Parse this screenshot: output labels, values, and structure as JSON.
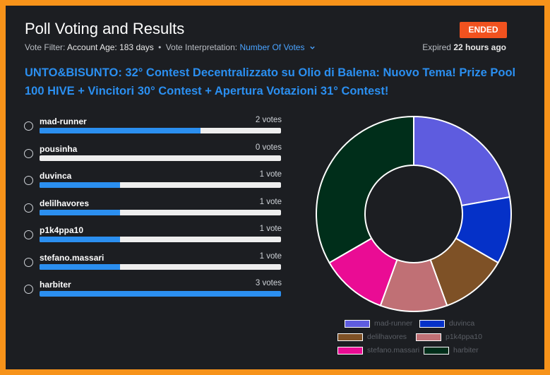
{
  "header": {
    "title": "Poll Voting and Results",
    "status_badge": "ENDED",
    "vote_filter_label": "Vote Filter:",
    "vote_filter_value": "Account Age: 183 days",
    "separator": "•",
    "interpretation_label": "Vote Interpretation:",
    "interpretation_value": "Number Of Votes",
    "expired_prefix": "Expired",
    "expired_value": "22 hours ago"
  },
  "question": "UNTO&BISUNTO: 32° Contest Decentralizzato su Olio di Balena: Nuovo Tema! Prize Pool 100 HIVE + Vincitori 30° Contest + Apertura Votazioni 31° Contest!",
  "options": [
    {
      "label": "mad-runner",
      "votes_text": "2 votes",
      "share": 0.667
    },
    {
      "label": "pousinha",
      "votes_text": "0 votes",
      "share": 0
    },
    {
      "label": "duvinca",
      "votes_text": "1 vote",
      "share": 0.333
    },
    {
      "label": "delilhavores",
      "votes_text": "1 vote",
      "share": 0.333
    },
    {
      "label": "p1k4ppa10",
      "votes_text": "1 vote",
      "share": 0.333
    },
    {
      "label": "stefano.massari",
      "votes_text": "1 vote",
      "share": 0.333
    },
    {
      "label": "harbiter",
      "votes_text": "3 votes",
      "share": 1
    }
  ],
  "chart_data": {
    "type": "pie",
    "categories": [
      "mad-runner",
      "duvinca",
      "delilhavores",
      "p1k4ppa10",
      "stefano.massari",
      "harbiter"
    ],
    "values": [
      2,
      1,
      1,
      1,
      1,
      3
    ],
    "colors": [
      "#5e5cdf",
      "#0531c8",
      "#7e5126",
      "#c07075",
      "#ea0c94",
      "#002e1a"
    ],
    "legend": "bottom"
  }
}
